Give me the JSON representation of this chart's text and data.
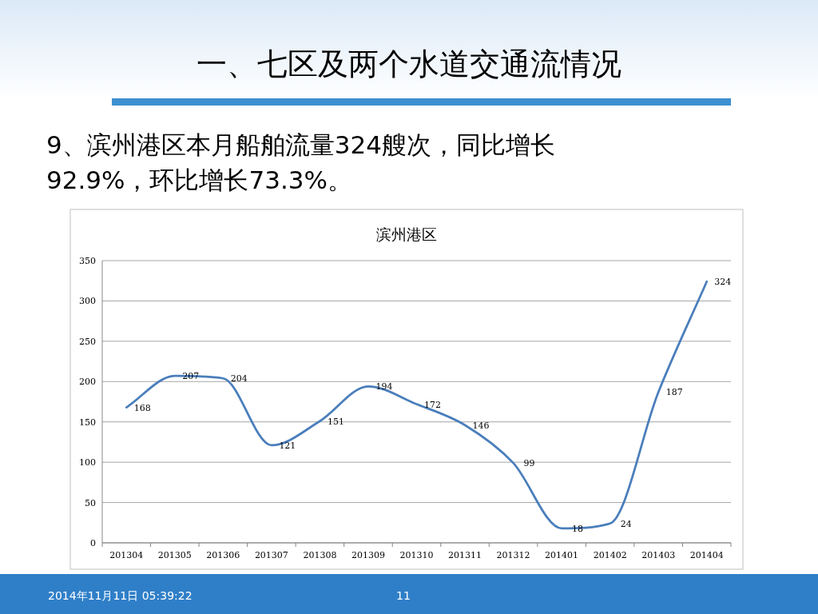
{
  "chart_data": {
    "type": "line",
    "title": "滨州港区",
    "annotations": [
      "一、七区及两个水道交通流情况",
      "9、滨州港区本月船舶流量324艘次，同比增长92.9%，环比增长73.3%。",
      "2014年11月11日  05:39:22",
      "11"
    ],
    "categories": [
      "201304",
      "201305",
      "201306",
      "201307",
      "201308",
      "201309",
      "201310",
      "201311",
      "201312",
      "201401",
      "201402",
      "201403",
      "201404"
    ],
    "series": [
      {
        "color": "#4a7ebb",
        "values": [
          168,
          207,
          204,
          121,
          151,
          194,
          172,
          146,
          99,
          18,
          24,
          187,
          324
        ]
      }
    ],
    "ylim": [
      0,
      350
    ],
    "yticks": [
      0,
      50,
      100,
      150,
      200,
      250,
      300,
      350
    ],
    "grid": "y",
    "marker": "none",
    "line_style": "solid",
    "data_labels": true
  }
}
